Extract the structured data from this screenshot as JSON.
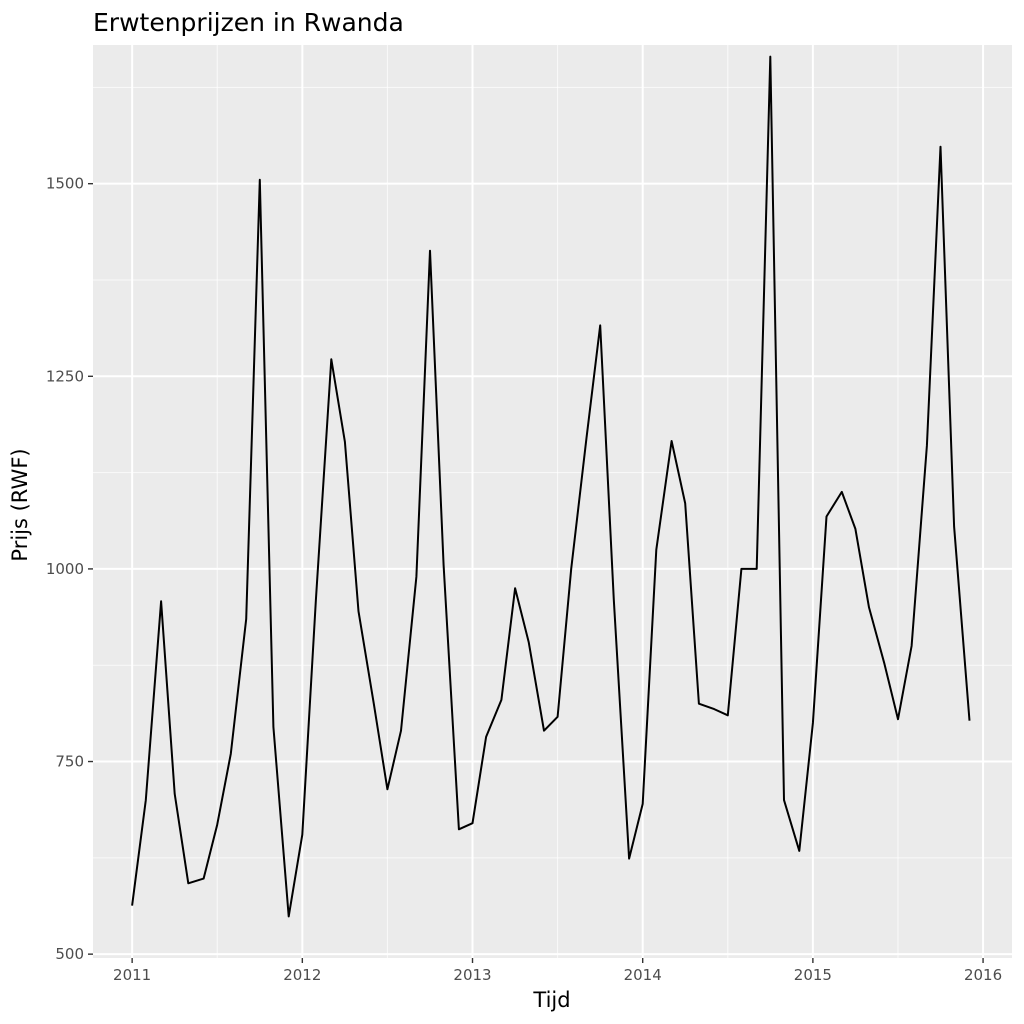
{
  "chart_data": {
    "type": "line",
    "title": "Erwtenprijzen in Rwanda",
    "xlabel": "Tijd",
    "ylabel": "Prijs (RWF)",
    "xlim": [
      2010.77,
      2016.17
    ],
    "ylim": [
      495,
      1680
    ],
    "x_ticks": [
      2011,
      2012,
      2013,
      2014,
      2015,
      2016
    ],
    "y_ticks": [
      500,
      750,
      1000,
      1250,
      1500
    ],
    "grid": true,
    "legend": "none",
    "series": [
      {
        "line_color": "#000000",
        "points": [
          [
            2011.0,
            563
          ],
          [
            2011.08,
            700
          ],
          [
            2011.17,
            958
          ],
          [
            2011.25,
            708
          ],
          [
            2011.33,
            592
          ],
          [
            2011.42,
            598
          ],
          [
            2011.5,
            668
          ],
          [
            2011.58,
            760
          ],
          [
            2011.67,
            935
          ],
          [
            2011.75,
            1505
          ],
          [
            2011.83,
            795
          ],
          [
            2011.92,
            549
          ],
          [
            2012.0,
            655
          ],
          [
            2012.08,
            960
          ],
          [
            2012.17,
            1272
          ],
          [
            2012.25,
            1165
          ],
          [
            2012.33,
            945
          ],
          [
            2012.42,
            825
          ],
          [
            2012.5,
            714
          ],
          [
            2012.58,
            790
          ],
          [
            2012.67,
            990
          ],
          [
            2012.75,
            1413
          ],
          [
            2012.83,
            1005
          ],
          [
            2012.92,
            662
          ],
          [
            2013.0,
            670
          ],
          [
            2013.08,
            782
          ],
          [
            2013.17,
            830
          ],
          [
            2013.25,
            975
          ],
          [
            2013.33,
            905
          ],
          [
            2013.42,
            790
          ],
          [
            2013.5,
            808
          ],
          [
            2013.58,
            1000
          ],
          [
            2013.67,
            1170
          ],
          [
            2013.75,
            1316
          ],
          [
            2013.83,
            960
          ],
          [
            2013.92,
            624
          ],
          [
            2014.0,
            695
          ],
          [
            2014.08,
            1025
          ],
          [
            2014.17,
            1166
          ],
          [
            2014.25,
            1085
          ],
          [
            2014.33,
            825
          ],
          [
            2014.42,
            818
          ],
          [
            2014.5,
            810
          ],
          [
            2014.58,
            1000
          ],
          [
            2014.67,
            1000
          ],
          [
            2014.75,
            1665
          ],
          [
            2014.83,
            700
          ],
          [
            2014.92,
            634
          ],
          [
            2015.0,
            800
          ],
          [
            2015.08,
            1068
          ],
          [
            2015.17,
            1100
          ],
          [
            2015.25,
            1052
          ],
          [
            2015.33,
            950
          ],
          [
            2015.42,
            877
          ],
          [
            2015.5,
            805
          ],
          [
            2015.58,
            900
          ],
          [
            2015.67,
            1160
          ],
          [
            2015.75,
            1548
          ],
          [
            2015.83,
            1055
          ],
          [
            2015.92,
            803
          ]
        ]
      }
    ]
  }
}
